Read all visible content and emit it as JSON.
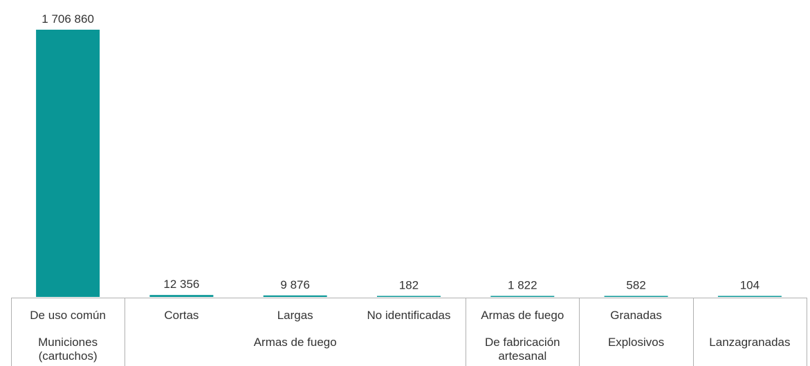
{
  "chart_data": {
    "type": "bar",
    "categories": [
      "De uso común",
      "Cortas",
      "Largas",
      "No identificadas",
      "Armas de fuego",
      "Granadas",
      ""
    ],
    "values": [
      1706860,
      12356,
      9876,
      182,
      1822,
      582,
      104
    ],
    "value_labels": [
      "1 706 860",
      "12 356",
      "9 876",
      "182",
      "1 822",
      "582",
      "104"
    ],
    "groups": [
      {
        "label": [
          "Municiones",
          "(cartuchos)"
        ],
        "span": [
          0,
          0
        ]
      },
      {
        "label": [
          "Armas de fuego"
        ],
        "span": [
          1,
          3
        ]
      },
      {
        "label": [
          "De fabricación",
          "artesanal"
        ],
        "span": [
          4,
          4
        ]
      },
      {
        "label": [
          "Explosivos"
        ],
        "span": [
          5,
          5
        ]
      },
      {
        "label": [
          "Lanzagranadas"
        ],
        "span": [
          6,
          6
        ]
      }
    ],
    "ylim": [
      0,
      1706860
    ],
    "bar_color": "#0a9696",
    "grid": false,
    "legend": "none"
  }
}
